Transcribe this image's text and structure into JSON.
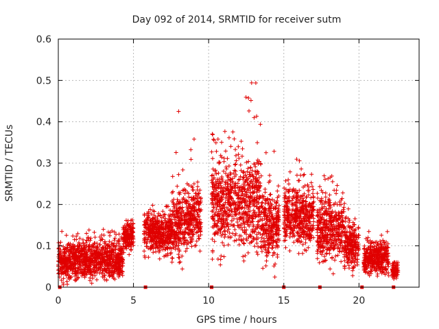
{
  "chart_data": {
    "type": "scatter",
    "title": "Day 092 of 2014, SRMTID for receiver sutm",
    "xlabel": "GPS time / hours",
    "ylabel": "SRMTID / TECUs",
    "xlim": [
      0,
      24
    ],
    "ylim": [
      0,
      0.6
    ],
    "x_ticks": [
      0,
      5,
      10,
      15,
      20
    ],
    "y_ticks": [
      0,
      0.1,
      0.2,
      0.3,
      0.4,
      0.5,
      0.6
    ],
    "y_tick_labels": [
      "0",
      "0.1",
      "0.2",
      "0.3",
      "0.4",
      "0.5",
      "0.6"
    ],
    "grid": true,
    "marker": "+",
    "color": "#e00000",
    "series_profile": [
      {
        "x": [
          0.0,
          0.7
        ],
        "median": 0.06,
        "spread": 0.04,
        "max": 0.14
      },
      {
        "x": [
          0.7,
          4.3
        ],
        "median": 0.065,
        "spread": 0.035,
        "max": 0.14
      },
      {
        "x": [
          4.3,
          5.0
        ],
        "median": 0.125,
        "spread": 0.03,
        "max": 0.17
      },
      {
        "x": [
          5.7,
          7.5
        ],
        "median": 0.13,
        "spread": 0.04,
        "max": 0.2
      },
      {
        "x": [
          7.5,
          8.5
        ],
        "median": 0.15,
        "spread": 0.06,
        "max": 0.45
      },
      {
        "x": [
          8.5,
          9.5
        ],
        "median": 0.17,
        "spread": 0.06,
        "max": 0.37
      },
      {
        "x": [
          10.2,
          12.0
        ],
        "median": 0.2,
        "spread": 0.08,
        "max": 0.39
      },
      {
        "x": [
          12.0,
          13.5
        ],
        "median": 0.2,
        "spread": 0.09,
        "max": 0.51
      },
      {
        "x": [
          13.5,
          14.7
        ],
        "median": 0.15,
        "spread": 0.07,
        "max": 0.35
      },
      {
        "x": [
          15.0,
          17.0
        ],
        "median": 0.17,
        "spread": 0.06,
        "max": 0.32
      },
      {
        "x": [
          17.2,
          19.0
        ],
        "median": 0.14,
        "spread": 0.06,
        "max": 0.27
      },
      {
        "x": [
          19.0,
          20.0
        ],
        "median": 0.1,
        "spread": 0.05,
        "max": 0.24
      },
      {
        "x": [
          20.3,
          22.0
        ],
        "median": 0.07,
        "spread": 0.03,
        "max": 0.14
      },
      {
        "x": [
          22.2,
          22.6
        ],
        "median": 0.04,
        "spread": 0.015,
        "max": 0.06
      }
    ],
    "gap_markers_x": [
      0.1,
      5.8,
      10.2,
      15.0,
      17.4,
      20.2,
      22.3
    ]
  }
}
